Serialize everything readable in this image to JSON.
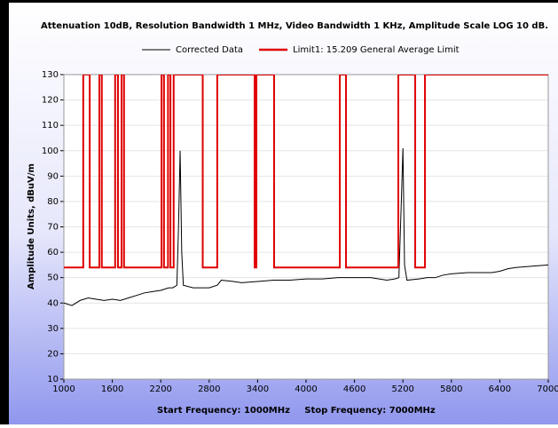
{
  "chart_data": {
    "type": "line",
    "title": "Attenuation 10dB, Resolution Bandwidth 1 MHz, Video Bandwidth 1 KHz, Amplitude Scale LOG 10 dB.",
    "y_label": "Amplitude Units, dBuV/m",
    "start_label": "Start Frequency: 1000MHz",
    "stop_label": "Stop Frequency: 7000MHz",
    "xlim": [
      1000,
      7000
    ],
    "xticks": [
      1000,
      1600,
      2200,
      2800,
      3400,
      4000,
      4600,
      5200,
      5800,
      6400,
      7000
    ],
    "ylim": [
      10,
      130
    ],
    "yticks": [
      10,
      20,
      30,
      40,
      50,
      60,
      70,
      80,
      90,
      100,
      110,
      120,
      130
    ],
    "grid": true,
    "series": [
      {
        "name": "Corrected Data",
        "color": "#000000",
        "x": [
          1000,
          1100,
          1200,
          1300,
          1400,
          1500,
          1600,
          1700,
          1800,
          1900,
          2000,
          2100,
          2200,
          2300,
          2350,
          2400,
          2420,
          2440,
          2460,
          2480,
          2600,
          2800,
          2900,
          2950,
          3100,
          3200,
          3400,
          3600,
          3800,
          4000,
          4200,
          4400,
          4600,
          4800,
          5000,
          5100,
          5150,
          5180,
          5200,
          5220,
          5250,
          5400,
          5500,
          5600,
          5700,
          5800,
          6000,
          6200,
          6300,
          6400,
          6500,
          6600,
          6800,
          7000
        ],
        "values": [
          40,
          39,
          41,
          42,
          41.5,
          41,
          41.5,
          41,
          42,
          43,
          44,
          44.5,
          45,
          46,
          46,
          47,
          70,
          100,
          60,
          47,
          46,
          46,
          47,
          49,
          48.5,
          48,
          48.5,
          49,
          49,
          49.5,
          49.5,
          50,
          50,
          50,
          49,
          49.5,
          50,
          80,
          101,
          55,
          49,
          49.5,
          50,
          50,
          51,
          51.5,
          52,
          52,
          52,
          52.5,
          53.5,
          54,
          54.5,
          55
        ]
      },
      {
        "name": "Limit1: 15.209 General Average Limit",
        "color": "#e00000",
        "x": [
          1000,
          1240,
          1240,
          1320,
          1320,
          1440,
          1440,
          1470,
          1470,
          1635,
          1635,
          1670,
          1670,
          1715,
          1715,
          1745,
          1745,
          2210,
          2210,
          2240,
          2240,
          2290,
          2290,
          2320,
          2320,
          2360,
          2360,
          2720,
          2720,
          2900,
          2900,
          3363,
          3363,
          3385,
          3385,
          3604,
          3604,
          4418,
          4418,
          4495,
          4495,
          5143,
          5143,
          5352,
          5352,
          5473,
          5473,
          7000
        ],
        "values": [
          54,
          54,
          130,
          130,
          54,
          54,
          130,
          130,
          54,
          54,
          130,
          130,
          54,
          54,
          130,
          130,
          54,
          54,
          130,
          130,
          54,
          54,
          130,
          130,
          54,
          54,
          130,
          130,
          54,
          54,
          130,
          130,
          54,
          54,
          130,
          130,
          54,
          54,
          130,
          130,
          54,
          54,
          130,
          130,
          54,
          54,
          130,
          130
        ]
      }
    ]
  }
}
